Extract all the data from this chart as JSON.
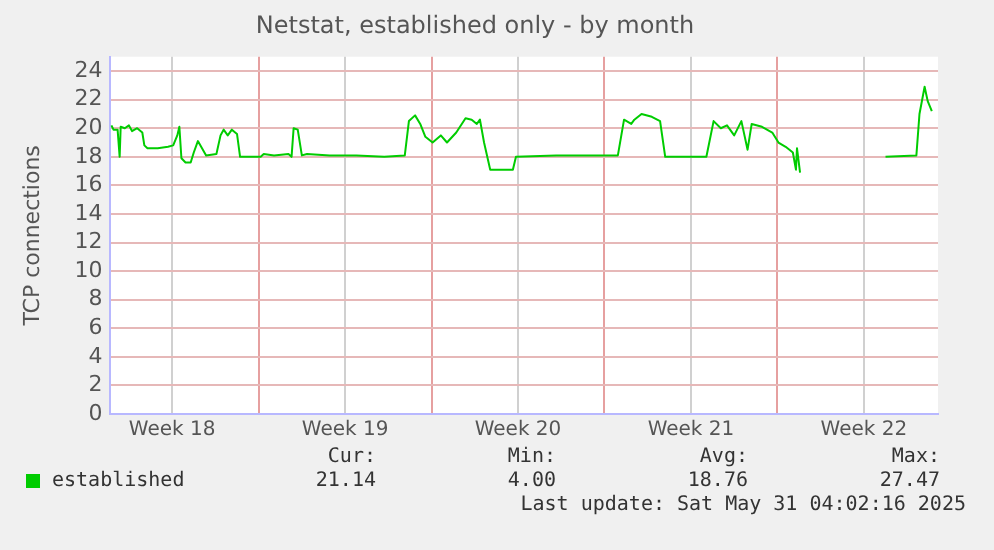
{
  "chart_data": {
    "type": "line",
    "title": "Netstat, established only - by month",
    "ylabel": "TCP connections",
    "x": [
      "2025-04-28T01:00",
      "2025-04-28T03:00",
      "2025-04-28T07:00",
      "2025-04-28T09:00",
      "2025-04-28T10:00",
      "2025-04-28T14:00",
      "2025-04-28T18:00",
      "2025-04-28T21:00",
      "2025-04-29T02:00",
      "2025-04-29T07:00",
      "2025-04-29T09:00",
      "2025-04-29T12:00",
      "2025-04-29T22:00",
      "2025-04-30T08:00",
      "2025-04-30T13:00",
      "2025-04-30T17:00",
      "2025-04-30T19:00",
      "2025-04-30T21:00",
      "2025-05-01T01:00",
      "2025-05-01T06:00",
      "2025-05-01T09:00",
      "2025-05-01T13:00",
      "2025-05-01T17:00",
      "2025-05-01T21:00",
      "2025-05-02T07:00",
      "2025-05-02T11:00",
      "2025-05-02T14:00",
      "2025-05-02T18:00",
      "2025-05-02T22:00",
      "2025-05-03T03:00",
      "2025-05-03T06:00",
      "2025-05-04T02:00",
      "2025-05-04T05:00",
      "2025-05-04T15:00",
      "2025-05-05T05:00",
      "2025-05-05T08:00",
      "2025-05-05T10:00",
      "2025-05-05T14:00",
      "2025-05-05T18:00",
      "2025-05-05T23:00",
      "2025-05-06T21:00",
      "2025-05-07T23:00",
      "2025-05-09T02:00",
      "2025-05-09T22:00",
      "2025-05-10T02:00",
      "2025-05-10T08:00",
      "2025-05-10T13:00",
      "2025-05-10T18:00",
      "2025-05-11T01:00",
      "2025-05-11T09:00",
      "2025-05-11T15:00",
      "2025-05-12T00:00",
      "2025-05-12T09:00",
      "2025-05-12T15:00",
      "2025-05-12T20:00",
      "2025-05-12T23:00",
      "2025-05-13T03:00",
      "2025-05-13T09:00",
      "2025-05-14T07:00",
      "2025-05-14T10:00",
      "2025-05-16T01:00",
      "2025-05-18T13:00",
      "2025-05-18T19:00",
      "2025-05-19T02:00",
      "2025-05-19T05:00",
      "2025-05-19T12:00",
      "2025-05-19T22:00",
      "2025-05-20T06:00",
      "2025-05-20T11:00",
      "2025-05-22T03:00",
      "2025-05-22T10:00",
      "2025-05-22T17:00",
      "2025-05-22T23:00",
      "2025-05-23T06:00",
      "2025-05-23T13:00",
      "2025-05-23T19:00",
      "2025-05-23T23:00",
      "2025-05-24T09:00",
      "2025-05-24T19:00",
      "2025-05-25T01:00",
      "2025-05-25T08:00",
      "2025-05-25T15:00",
      "2025-05-25T18:00",
      "2025-05-25T19:00",
      "2025-05-25T22:00",
      "2025-05-27T00:00",
      "2025-05-29T09:00",
      "2025-05-30T15:00",
      "2025-05-30T18:00",
      "2025-05-30T23:00",
      "2025-05-31T02:00",
      "2025-05-31T06:00"
    ],
    "series": [
      {
        "name": "established",
        "color": "#00cc00",
        "values": [
          20.2,
          19.9,
          19.9,
          18.0,
          20.1,
          20.0,
          20.2,
          19.8,
          20.0,
          19.7,
          18.8,
          18.6,
          18.6,
          18.7,
          18.8,
          19.5,
          20.1,
          17.9,
          17.6,
          17.6,
          18.3,
          19.1,
          18.6,
          18.1,
          18.2,
          19.5,
          19.9,
          19.5,
          19.9,
          19.6,
          18.0,
          18.0,
          18.2,
          18.1,
          18.2,
          18.0,
          20.0,
          19.9,
          18.1,
          18.2,
          18.1,
          18.1,
          18.0,
          18.1,
          20.5,
          20.9,
          20.3,
          19.4,
          19.0,
          19.5,
          19.0,
          19.7,
          20.7,
          20.6,
          20.3,
          20.6,
          19.0,
          17.1,
          17.1,
          18.0,
          18.1,
          18.1,
          20.6,
          20.3,
          20.6,
          21.0,
          20.8,
          20.5,
          18.0,
          18.0,
          20.5,
          20.0,
          20.2,
          19.5,
          20.5,
          18.5,
          20.3,
          20.1,
          19.7,
          19.0,
          18.7,
          18.3,
          17.1,
          18.6,
          16.9,
          null,
          18.0,
          18.1,
          21.0,
          22.9,
          21.9,
          21.2
        ]
      }
    ],
    "xlim": [
      "2025-04-28",
      "2025-05-31T12:00"
    ],
    "xticks": [
      {
        "value": "2025-04-30T12:00",
        "label": "Week 18"
      },
      {
        "value": "2025-05-04",
        "label": null
      },
      {
        "value": "2025-05-07T12:00",
        "label": "Week 19"
      },
      {
        "value": "2025-05-11",
        "label": null
      },
      {
        "value": "2025-05-14T12:00",
        "label": "Week 20"
      },
      {
        "value": "2025-05-18",
        "label": null
      },
      {
        "value": "2025-05-21T12:00",
        "label": "Week 21"
      },
      {
        "value": "2025-05-25",
        "label": null
      },
      {
        "value": "2025-05-28T12:00",
        "label": "Week 22"
      }
    ],
    "ylim": [
      0,
      25
    ],
    "yticks": [
      0,
      2,
      4,
      6,
      8,
      10,
      12,
      14,
      16,
      18,
      20,
      22,
      24
    ],
    "grid": true,
    "legend": "bottom left",
    "marker": "none",
    "line_style": "solid",
    "annotations": [
      "Cur:",
      "21.14",
      "Min:",
      "4.00",
      "Avg:",
      "18.76",
      "Max:",
      "27.47",
      "Last update: Sat May 31 04:02:16 2025"
    ]
  }
}
